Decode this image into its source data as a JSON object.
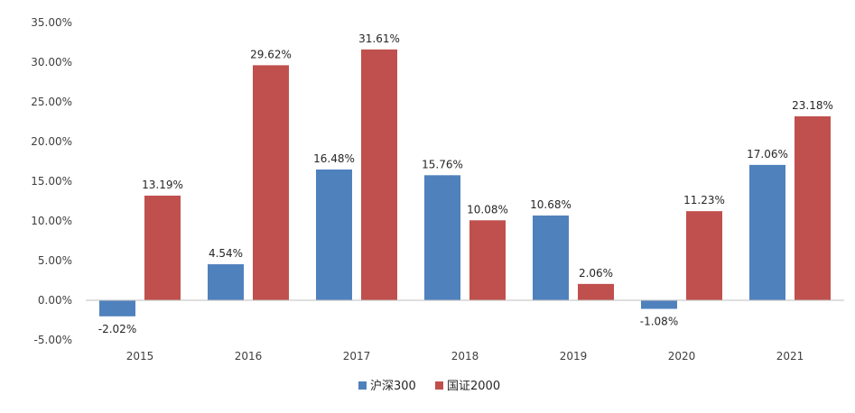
{
  "chart_data": {
    "type": "bar",
    "categories": [
      "2015",
      "2016",
      "2017",
      "2018",
      "2019",
      "2020",
      "2021"
    ],
    "series": [
      {
        "name": "沪深300",
        "color": "#4f81bd",
        "values": [
          -2.02,
          4.54,
          16.48,
          15.76,
          10.68,
          -1.08,
          17.06
        ],
        "labels": [
          "-2.02%",
          "4.54%",
          "16.48%",
          "15.76%",
          "10.68%",
          "-1.08%",
          "17.06%"
        ]
      },
      {
        "name": "国证2000",
        "color": "#c0504d",
        "values": [
          13.19,
          29.62,
          31.61,
          10.08,
          2.06,
          11.23,
          23.18
        ],
        "labels": [
          "13.19%",
          "29.62%",
          "31.61%",
          "10.08%",
          "2.06%",
          "11.23%",
          "23.18%"
        ]
      }
    ],
    "y_ticks": [
      "35.00%",
      "30.00%",
      "25.00%",
      "20.00%",
      "15.00%",
      "10.00%",
      "5.00%",
      "0.00%",
      "-5.00%"
    ],
    "ylim": [
      -5,
      35
    ],
    "grid": false,
    "legend_position": "bottom",
    "title": "",
    "xlabel": "",
    "ylabel": ""
  }
}
